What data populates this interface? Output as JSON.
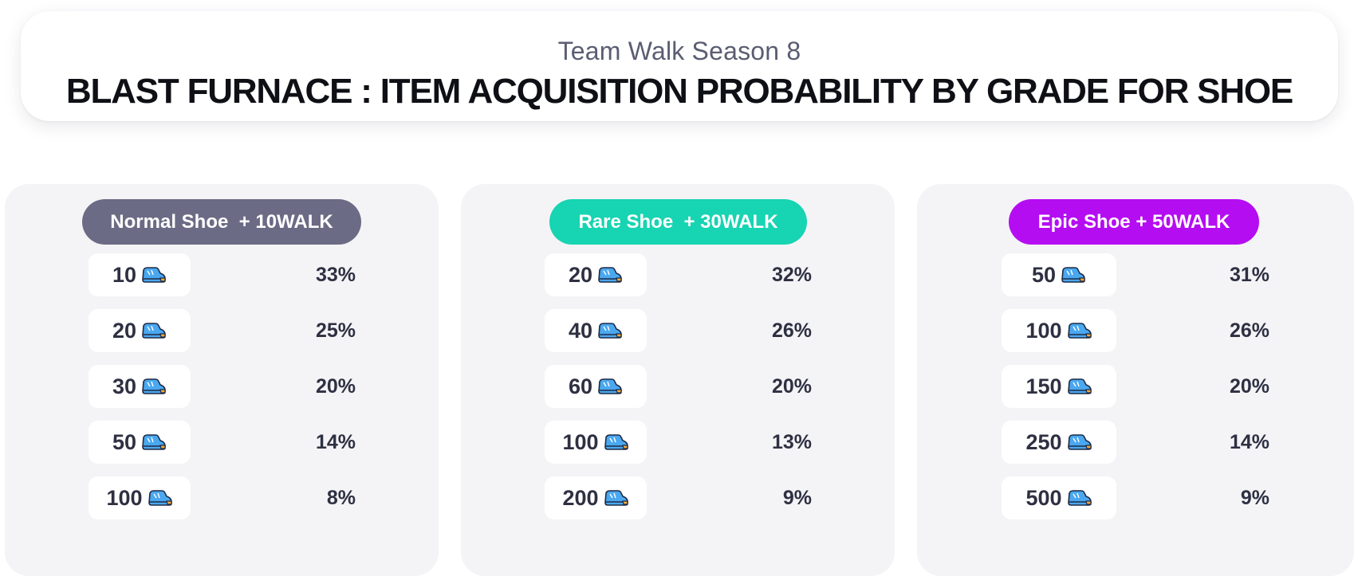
{
  "header": {
    "subtitle": "Team Walk Season 8",
    "title": "BLAST FURNACE : ITEM ACQUISITION PROBABILITY BY GRADE FOR SHOE"
  },
  "panels": [
    {
      "label": "Normal Shoe  + 10WALK",
      "color": "#6b6b85",
      "rows": [
        {
          "amount": "10",
          "percent": "33%"
        },
        {
          "amount": "20",
          "percent": "25%"
        },
        {
          "amount": "30",
          "percent": "20%"
        },
        {
          "amount": "50",
          "percent": "14%"
        },
        {
          "amount": "100",
          "percent": "8%"
        }
      ]
    },
    {
      "label": "Rare Shoe  + 30WALK",
      "color": "#17d4b2",
      "rows": [
        {
          "amount": "20",
          "percent": "32%"
        },
        {
          "amount": "40",
          "percent": "26%"
        },
        {
          "amount": "60",
          "percent": "20%"
        },
        {
          "amount": "100",
          "percent": "13%"
        },
        {
          "amount": "200",
          "percent": "9%"
        }
      ]
    },
    {
      "label": "Epic Shoe + 50WALK",
      "color": "#b50df2",
      "rows": [
        {
          "amount": "50",
          "percent": "31%"
        },
        {
          "amount": "100",
          "percent": "26%"
        },
        {
          "amount": "150",
          "percent": "20%"
        },
        {
          "amount": "250",
          "percent": "14%"
        },
        {
          "amount": "500",
          "percent": "9%"
        }
      ]
    }
  ],
  "icons": {
    "row_icon": "blue-shoe-icon"
  }
}
